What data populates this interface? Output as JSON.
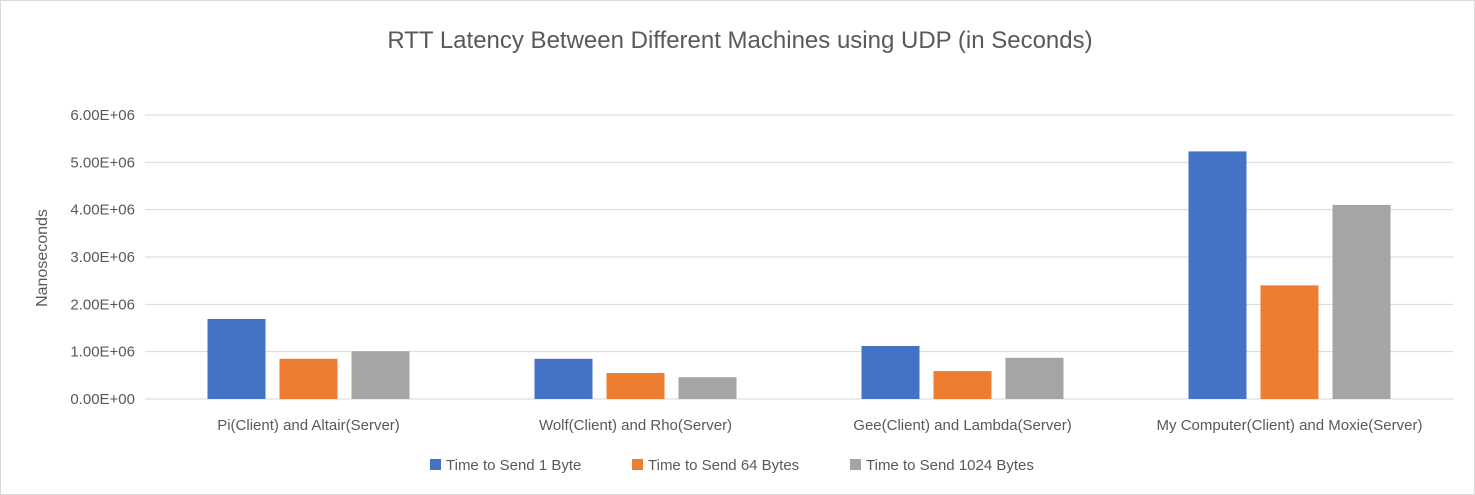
{
  "chart_data": {
    "type": "bar",
    "title": "RTT Latency Between Different Machines using UDP (in Seconds)",
    "xlabel": "",
    "ylabel": "Nanoseconds",
    "ylim": [
      0,
      6000000
    ],
    "yticks": [
      0,
      1000000,
      2000000,
      3000000,
      4000000,
      5000000,
      6000000
    ],
    "ytick_labels": [
      "0.00E+00",
      "1.00E+06",
      "2.00E+06",
      "3.00E+06",
      "4.00E+06",
      "5.00E+06",
      "6.00E+06"
    ],
    "categories": [
      "Pi(Client) and Altair(Server)",
      "Wolf(Client) and Rho(Server)",
      "Gee(Client) and Lambda(Server)",
      "My Computer(Client) and Moxie(Server)"
    ],
    "series": [
      {
        "name": "Time to Send 1 Byte",
        "color": "#4472c4",
        "values": [
          1690000,
          850000,
          1120000,
          5230000
        ]
      },
      {
        "name": "Time to Send 64 Bytes",
        "color": "#ed7d31",
        "values": [
          850000,
          550000,
          590000,
          2400000
        ]
      },
      {
        "name": "Time to Send 1024 Bytes",
        "color": "#a5a5a5",
        "values": [
          1010000,
          460000,
          870000,
          4100000
        ]
      }
    ],
    "grid": true,
    "legend_position": "bottom"
  }
}
